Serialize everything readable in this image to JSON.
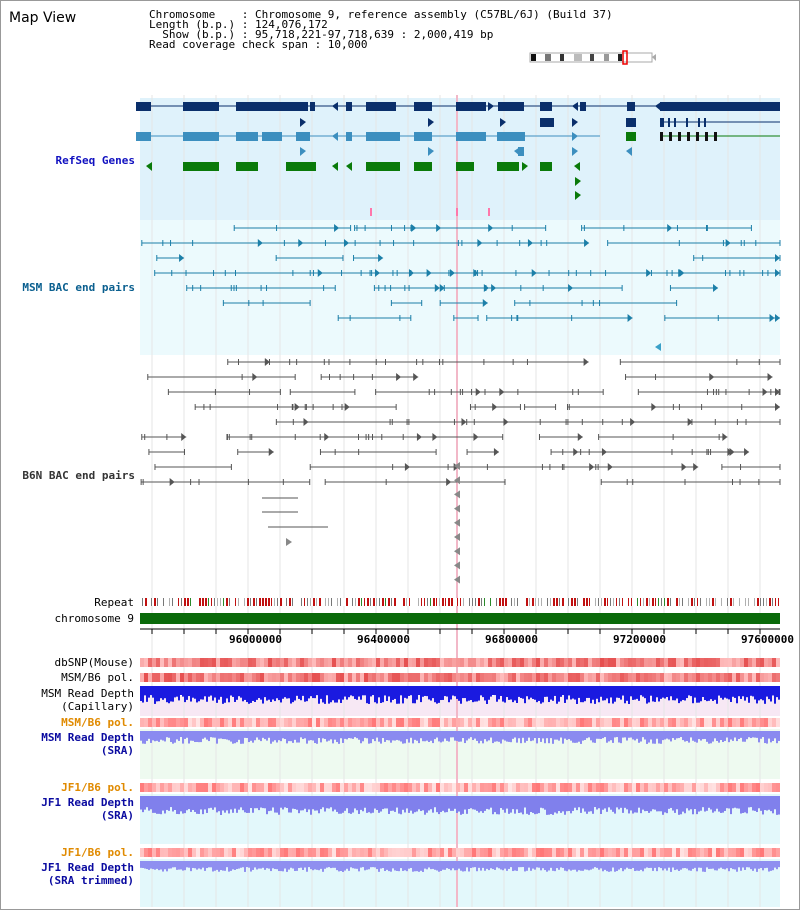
{
  "title": "Map View",
  "info": {
    "line1": "Chromosome    : Chromosome 9, reference assembly (C57BL/6J) (Build 37)",
    "line2": "Length (b.p.) : 124,076,172",
    "line3": "  Show (b.p.) : 95,718,221-97,718,639 : 2,000,419 bp",
    "line4": "Read coverage check span : 10,000"
  },
  "tracks": {
    "refseq": {
      "label": "RefSeq Genes",
      "color": "#0000cc"
    },
    "msm_bac": {
      "label": "MSM BAC end pairs",
      "color": "#005f8f"
    },
    "b6n_bac": {
      "label": "B6N BAC end pairs",
      "color": "#333333"
    },
    "repeat": {
      "label": "Repeat"
    },
    "chrom": {
      "label": "chromosome 9"
    },
    "dbsnp": {
      "label": "dbSNP(Mouse)"
    },
    "msm_pol": {
      "label": "MSM/B6 pol."
    },
    "msm_depth_cap": {
      "label": "MSM Read Depth\n(Capillary)"
    },
    "msm_pol_sra": {
      "label": "MSM/B6 pol.",
      "color": "#e08a00"
    },
    "msm_depth_sra": {
      "label": "MSM Read Depth\n(SRA)",
      "color": "#0000aa"
    },
    "jf1_pol": {
      "label": "JF1/B6 pol.",
      "color": "#e08a00"
    },
    "jf1_depth": {
      "label": "JF1 Read Depth\n(SRA)",
      "color": "#0000aa"
    },
    "jf1_pol2": {
      "label": "JF1/B6 pol.",
      "color": "#e08a00"
    },
    "jf1_depth_trim": {
      "label": "JF1 Read Depth\n(SRA trimmed)",
      "color": "#0000aa"
    }
  },
  "ruler": {
    "ticks": [
      "96000000",
      "96400000",
      "96800000",
      "97200000",
      "97600000"
    ]
  },
  "colors": {
    "refseq_bg": "#dff2fb",
    "msm_bg": "#ecfafd",
    "navy": "#0a2f6b",
    "steel": "#3c8fbf",
    "green": "#0a7a0a",
    "chrom_green": "#0a6a0a"
  }
}
